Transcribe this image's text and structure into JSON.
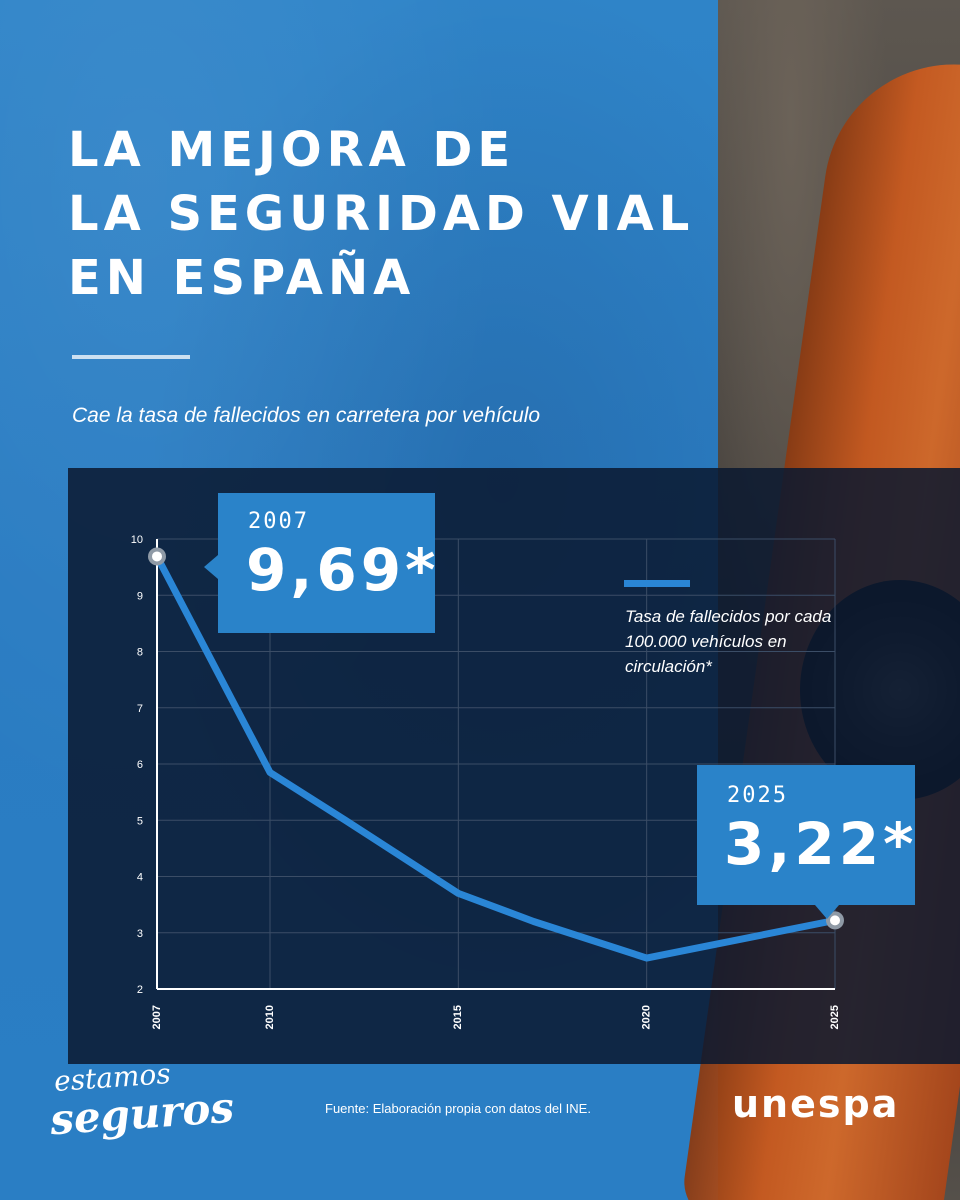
{
  "title_lines": [
    "LA MEJORA DE",
    "LA SEGURIDAD VIAL",
    "EN ESPAÑA"
  ],
  "subtitle": "Cae la tasa de fallecidos en carretera por vehículo",
  "callouts": [
    {
      "year": "2007",
      "value": "9,69*"
    },
    {
      "year": "2025",
      "value": "3,22*"
    }
  ],
  "legend": "Tasa de fallecidos por cada 100.000 vehículos en circulación*",
  "source": "Fuente: Elaboración propia con datos del INE.",
  "brand": {
    "line1": "estamos",
    "line2": "seguros"
  },
  "logo": "unespa",
  "colors": {
    "panel": "#0a1930",
    "accent": "#2a83c9",
    "line": "#2a86d6",
    "background_blue": "#2b7bc0"
  },
  "chart_data": {
    "type": "line",
    "title": "",
    "xlabel": "",
    "ylabel": "",
    "xlim": [
      2007,
      2025
    ],
    "ylim": [
      2,
      10
    ],
    "x_ticks": [
      2007,
      2010,
      2015,
      2020,
      2025
    ],
    "y_ticks": [
      2,
      3,
      4,
      5,
      6,
      7,
      8,
      9,
      10
    ],
    "grid": true,
    "legend_position": "top-right",
    "series": [
      {
        "name": "Tasa de fallecidos por cada 100.000 vehículos en circulación*",
        "x": [
          2007,
          2010,
          2012,
          2015,
          2017,
          2020,
          2025
        ],
        "y": [
          9.69,
          5.85,
          5.0,
          3.7,
          3.2,
          2.55,
          3.22
        ]
      }
    ]
  }
}
